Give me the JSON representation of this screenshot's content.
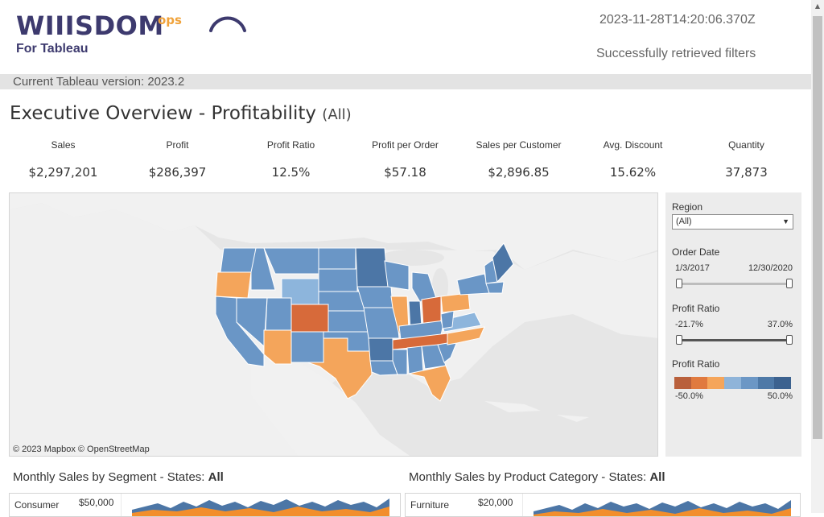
{
  "header": {
    "logo_main": "WIIISDOM",
    "logo_ops": "ops",
    "logo_sub": "For Tableau",
    "timestamp": "2023-11-28T14:20:06.370Z",
    "status": "Successfully retrieved filters",
    "version_label": "Current Tableau version: 2023.2"
  },
  "dashboard": {
    "title": "Executive Overview - Profitability",
    "filter_suffix": "(All)"
  },
  "kpis": [
    {
      "label": "Sales",
      "value": "$2,297,201"
    },
    {
      "label": "Profit",
      "value": "$286,397"
    },
    {
      "label": "Profit Ratio",
      "value": "12.5%"
    },
    {
      "label": "Profit per Order",
      "value": "$57.18"
    },
    {
      "label": "Sales per Customer",
      "value": "$2,896.85"
    },
    {
      "label": "Avg. Discount",
      "value": "15.62%"
    },
    {
      "label": "Quantity",
      "value": "37,873"
    }
  ],
  "map": {
    "credit": "© 2023 Mapbox © OpenStreetMap"
  },
  "filters": {
    "region": {
      "label": "Region",
      "value": "(All)"
    },
    "order_date": {
      "label": "Order Date",
      "min": "1/3/2017",
      "max": "12/30/2020",
      "range_fraction": [
        0,
        1
      ]
    },
    "profit_ratio_slider": {
      "label": "Profit Ratio",
      "min": "-21.7%",
      "max": "37.0%",
      "range_fraction": [
        0,
        1
      ]
    },
    "profit_ratio_legend": {
      "label": "Profit Ratio",
      "min": "-50.0%",
      "max": "50.0%",
      "colors": [
        "#b9603c",
        "#e07a3f",
        "#f5a55a",
        "#8fb4d9",
        "#6c97c5",
        "#4e79a7",
        "#3c628f"
      ]
    }
  },
  "colors": {
    "loss_dark": "#d76a3a",
    "loss_light": "#f4a55b",
    "profit_light": "#8db5dc",
    "profit_mid": "#6a96c6",
    "profit_dark": "#4c76a6",
    "land_other": "#f1f1f1",
    "water": "#e6e6e6"
  },
  "bottom_sections": {
    "segment": {
      "title": "Monthly Sales by Segment - States:",
      "state": "All",
      "row_label": "Consumer",
      "axis_label": "$50,000"
    },
    "category": {
      "title": "Monthly Sales by Product Category - States:",
      "state": "All",
      "row_label": "Furniture",
      "axis_label": "$20,000"
    }
  }
}
